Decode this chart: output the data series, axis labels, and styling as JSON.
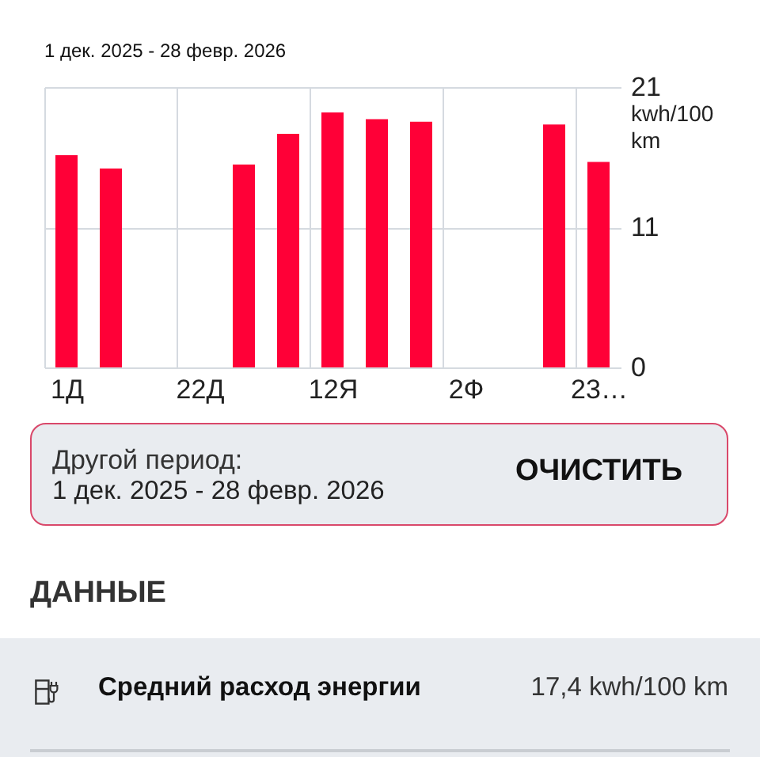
{
  "chart_data": [
    {
      "type": "bar",
      "title": "1 дек. 2025 - 28 февр. 2026",
      "ylabel": "kwh/100 km",
      "x": [
        "2025-12-04T12:00",
        "2025-12-11T12:00",
        "2026-01-01T12:00",
        "2026-01-08T12:00",
        "2026-01-15T12:00",
        "2026-01-22T12:00",
        "2026-01-29T12:00",
        "2026-02-19T12:00",
        "2026-02-26T12:00"
      ],
      "values": [
        15.9,
        14.9,
        15.2,
        17.5,
        19.1,
        18.6,
        18.4,
        18.2,
        15.4
      ],
      "color": "#ff0037",
      "xlim": [
        "2025-12-01",
        "2026-03-02"
      ],
      "xticks": [
        {
          "value": "2025-12-04T12:00",
          "label": "1Д"
        },
        {
          "value": "2025-12-25T12:00",
          "label": "22Д"
        },
        {
          "value": "2026-01-15T12:00",
          "label": "12Я"
        },
        {
          "value": "2026-02-05T12:00",
          "label": "2Ф"
        },
        {
          "value": "2026-02-26T12:00",
          "label": "23…"
        }
      ],
      "ylim": [
        0,
        21
      ],
      "yticks": [
        0,
        {
          "value": 10.5,
          "label": "11"
        },
        21
      ],
      "grid": "y",
      "ref_lines": [
        {
          "axis": "x",
          "value": "2025-12-22",
          "color": "#d5dae0"
        },
        {
          "axis": "x",
          "value": "2026-01-12",
          "color": "#d5dae0"
        },
        {
          "axis": "x",
          "value": "2026-02-02",
          "color": "#d5dae0"
        },
        {
          "axis": "x",
          "value": "2026-02-23",
          "color": "#d5dae0"
        }
      ]
    },
    {
      "type": "other",
      "annotations": [
        "Другой период:",
        "1 дек. 2025 - 28 февр. 2026",
        "ОЧИСТИТЬ",
        "ДАННЫЕ",
        "Средний расход энергии",
        "17,4 kwh/100 km"
      ]
    }
  ]
}
